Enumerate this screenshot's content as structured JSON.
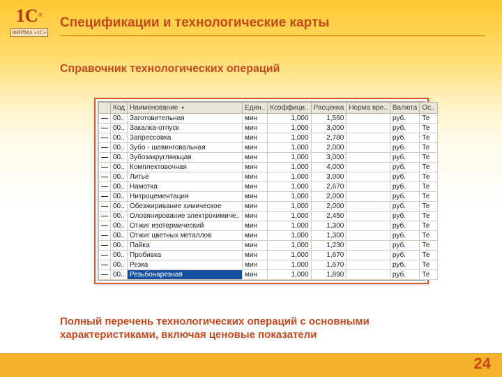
{
  "logo": {
    "main": "1С",
    "reg": "®",
    "firm": "ФИРМА «1С»"
  },
  "title": "Спецификации и технологические карты",
  "subtitle": "Справочник технологических операций",
  "footer": "Полный перечень технологических операций с основными характеристиками, включая ценовые показатели",
  "page_number": "24",
  "colors": {
    "accent": "#c24a1e",
    "frame": "#d85a28",
    "header_bg": "#e9e6d9",
    "selected_bg": "#1450a0"
  },
  "table": {
    "columns": [
      "",
      "Код",
      "Наименование",
      "Един..",
      "Коэффици..",
      "Расценка",
      "Норма вре..",
      "Валюта",
      "Ос.."
    ],
    "sort_column_index": 2,
    "rows": [
      {
        "code": "00..",
        "name": "Заготовительная",
        "unit": "мин",
        "coef": "1,000",
        "rate": "1,560",
        "norm": "",
        "curr": "руб.",
        "ost": "Те"
      },
      {
        "code": "00..",
        "name": "Закалка-отпуск",
        "unit": "мин",
        "coef": "1,000",
        "rate": "3,000",
        "norm": "",
        "curr": "руб.",
        "ost": "Те"
      },
      {
        "code": "00..",
        "name": "Запрессовка",
        "unit": "мин",
        "coef": "1,000",
        "rate": "2,780",
        "norm": "",
        "curr": "руб.",
        "ost": "Те"
      },
      {
        "code": "00..",
        "name": "Зубо - шевинговальная",
        "unit": "мин",
        "coef": "1,000",
        "rate": "2,000",
        "norm": "",
        "curr": "руб.",
        "ost": "Те"
      },
      {
        "code": "00..",
        "name": "Зубозакругляющая",
        "unit": "мин",
        "coef": "1,000",
        "rate": "3,000",
        "norm": "",
        "curr": "руб.",
        "ost": "Те"
      },
      {
        "code": "00..",
        "name": "Комплектовочная",
        "unit": "мин",
        "coef": "1,000",
        "rate": "4,000",
        "norm": "",
        "curr": "руб.",
        "ost": "Те"
      },
      {
        "code": "00..",
        "name": "Литье",
        "unit": "мин",
        "coef": "1,000",
        "rate": "3,000",
        "norm": "",
        "curr": "руб.",
        "ost": "Те"
      },
      {
        "code": "00..",
        "name": "Намотка",
        "unit": "мин",
        "coef": "1,000",
        "rate": "2,670",
        "norm": "",
        "curr": "руб.",
        "ost": "Те"
      },
      {
        "code": "00..",
        "name": "Нитроцементация",
        "unit": "мин",
        "coef": "1,000",
        "rate": "2,000",
        "norm": "",
        "curr": "руб.",
        "ost": "Те"
      },
      {
        "code": "00..",
        "name": "Обезжиривание химическое",
        "unit": "мин",
        "coef": "1,000",
        "rate": "2,000",
        "norm": "",
        "curr": "руб.",
        "ost": "Те"
      },
      {
        "code": "00..",
        "name": "Оловянирование электрохимиче..",
        "unit": "мин",
        "coef": "1,000",
        "rate": "2,450",
        "norm": "",
        "curr": "руб.",
        "ost": "Те"
      },
      {
        "code": "00..",
        "name": "Отжиг изотермический",
        "unit": "мин",
        "coef": "1,000",
        "rate": "1,300",
        "norm": "",
        "curr": "руб.",
        "ost": "Те"
      },
      {
        "code": "00..",
        "name": "Отжиг цветных металлов",
        "unit": "мин",
        "coef": "1,000",
        "rate": "1,300",
        "norm": "",
        "curr": "руб.",
        "ost": "Те"
      },
      {
        "code": "00..",
        "name": "Пайка",
        "unit": "мин",
        "coef": "1,000",
        "rate": "1,230",
        "norm": "",
        "curr": "руб.",
        "ost": "Те"
      },
      {
        "code": "00..",
        "name": "Пробивка",
        "unit": "мин",
        "coef": "1,000",
        "rate": "1,670",
        "norm": "",
        "curr": "руб.",
        "ost": "Те"
      },
      {
        "code": "00..",
        "name": "Резка",
        "unit": "мин",
        "coef": "1,000",
        "rate": "1,670",
        "norm": "",
        "curr": "руб.",
        "ost": "Те"
      },
      {
        "code": "00..",
        "name": "Резьбонарезная",
        "unit": "мин",
        "coef": "1,000",
        "rate": "1,890",
        "norm": "",
        "curr": "руб.",
        "ost": "Те",
        "selected": true
      }
    ]
  }
}
